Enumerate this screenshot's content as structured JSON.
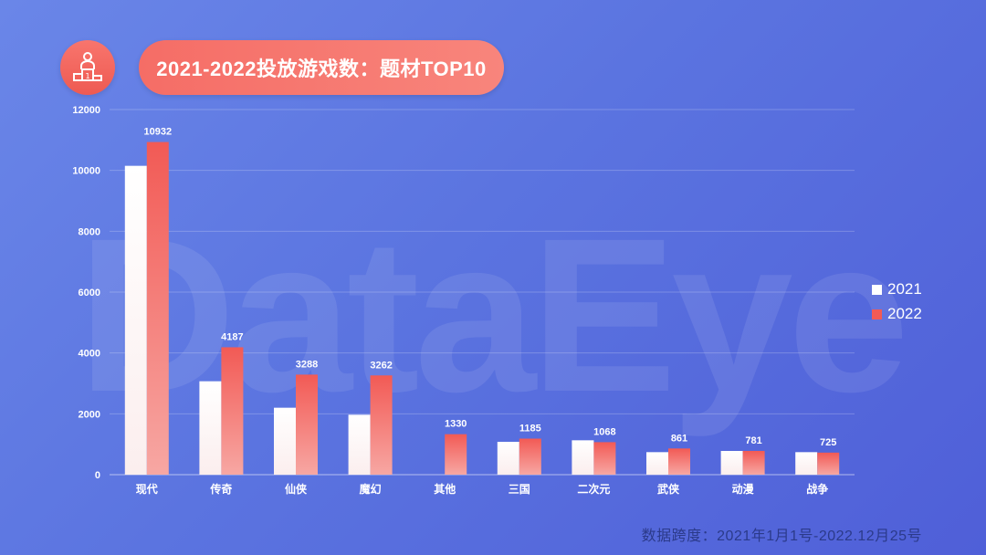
{
  "header": {
    "icon": "podium-person-icon",
    "title": "2021-2022投放游戏数：题材TOP10"
  },
  "watermark": "DataEye",
  "colors": {
    "series_2021": "#ffffff",
    "series_2022": "#f25a55",
    "accent": "#f06a63"
  },
  "chart_data": {
    "type": "bar",
    "title": "2021-2022投放游戏数：题材TOP10",
    "categories": [
      "现代",
      "传奇",
      "仙侠",
      "魔幻",
      "其他",
      "三国",
      "二次元",
      "武侠",
      "动漫",
      "战争"
    ],
    "series": [
      {
        "name": "2021",
        "values": [
          10150,
          3070,
          2200,
          1970,
          0,
          1080,
          1130,
          740,
          780,
          740
        ]
      },
      {
        "name": "2022",
        "values": [
          10932,
          4187,
          3288,
          3262,
          1330,
          1185,
          1068,
          861,
          781,
          725
        ]
      }
    ],
    "data_labels_series": "2022",
    "ylim": [
      0,
      12000
    ],
    "yticks": [
      0,
      2000,
      4000,
      6000,
      8000,
      10000,
      12000
    ],
    "grid": true,
    "legend": "right"
  },
  "footnote": "数据跨度：2021年1月1号-2022.12月25号"
}
